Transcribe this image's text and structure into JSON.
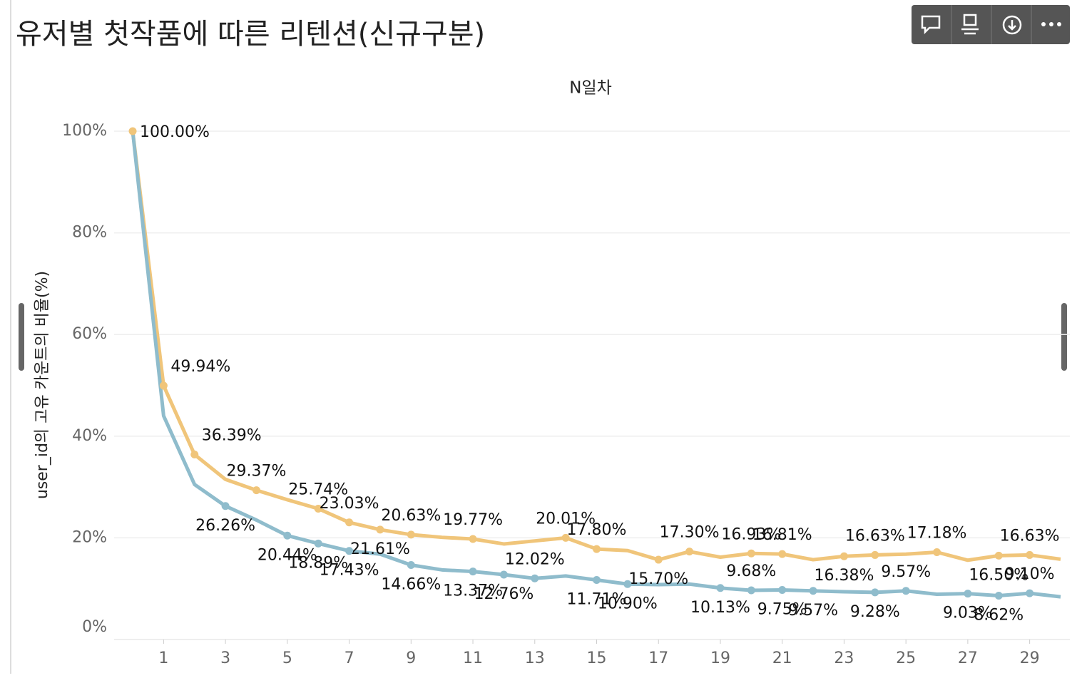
{
  "chart_data": {
    "type": "line",
    "title": "유저별 첫작품에 따른 리텐션(신규구분)",
    "x_label": "N일차",
    "y_label": "user_id의 고유 카운트의 비율(%)",
    "x": [
      0,
      1,
      2,
      3,
      4,
      5,
      6,
      7,
      8,
      9,
      10,
      11,
      12,
      13,
      14,
      15,
      16,
      17,
      18,
      19,
      20,
      21,
      22,
      23,
      24,
      25,
      26,
      27,
      28,
      29,
      30
    ],
    "xlim": [
      -0.6,
      30.3
    ],
    "xticks": [
      1,
      3,
      5,
      7,
      9,
      11,
      13,
      15,
      17,
      19,
      21,
      23,
      25,
      27,
      29
    ],
    "ylim": [
      0,
      100
    ],
    "yticks": [
      {
        "value": 0,
        "label": "0%"
      },
      {
        "value": 20,
        "label": "20%"
      },
      {
        "value": 40,
        "label": "40%"
      },
      {
        "value": 60,
        "label": "60%"
      },
      {
        "value": 80,
        "label": "80%"
      },
      {
        "value": 100,
        "label": "100%"
      }
    ],
    "grid": true,
    "series": [
      {
        "color": "#f0c57a",
        "values": [
          100,
          49.94,
          36.39,
          31.5,
          29.37,
          27.5,
          25.74,
          23.03,
          21.61,
          20.63,
          20.1,
          19.77,
          18.8,
          19.4,
          20.01,
          17.8,
          17.5,
          15.7,
          17.3,
          16.2,
          16.93,
          16.81,
          15.7,
          16.38,
          16.63,
          16.8,
          17.18,
          15.6,
          16.5,
          16.63,
          15.8
        ],
        "value_labels": [
          "100.00%",
          "49.94%",
          "36.39%",
          null,
          "29.37%",
          null,
          "25.74%",
          "23.03%",
          "21.61%",
          "20.63%",
          null,
          "19.77%",
          null,
          null,
          "20.01%",
          "17.80%",
          null,
          "15.70%",
          "17.30%",
          null,
          "16.93%",
          "16.81%",
          null,
          "16.38%",
          "16.63%",
          null,
          "17.18%",
          null,
          "16.50%",
          "16.63%",
          null
        ]
      },
      {
        "color": "#8fbccc",
        "values": [
          100,
          44,
          30.5,
          26.26,
          23.5,
          20.44,
          18.89,
          17.43,
          16.8,
          14.66,
          13.7,
          13.37,
          12.76,
          12.02,
          12.5,
          11.71,
          10.9,
          10.8,
          10.9,
          10.13,
          9.68,
          9.75,
          9.57,
          9.4,
          9.28,
          9.57,
          8.9,
          9.03,
          8.62,
          9.1,
          8.4
        ],
        "value_labels": [
          null,
          null,
          null,
          "26.26%",
          null,
          "20.44%",
          "18.89%",
          "17.43%",
          null,
          "14.66%",
          null,
          "13.37%",
          "12.76%",
          "12.02%",
          null,
          "11.71%",
          "10.90%",
          null,
          null,
          "10.13%",
          "9.68%",
          "9.75%",
          "9.57%",
          null,
          "9.28%",
          "9.57%",
          null,
          "9.03%",
          "8.62%",
          "9.10%",
          null
        ]
      }
    ]
  }
}
